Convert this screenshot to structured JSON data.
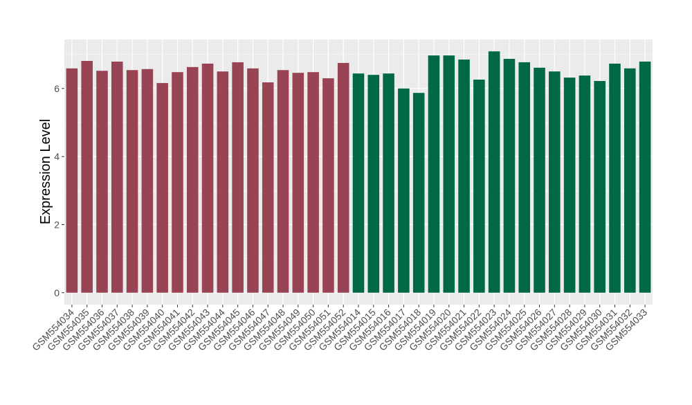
{
  "chart_data": {
    "type": "bar",
    "y_label": "Expression Level",
    "categories": [
      "GSM554034",
      "GSM554035",
      "GSM554036",
      "GSM554037",
      "GSM554038",
      "GSM554039",
      "GSM554040",
      "GSM554041",
      "GSM554042",
      "GSM554043",
      "GSM554044",
      "GSM554045",
      "GSM554046",
      "GSM554047",
      "GSM554048",
      "GSM554049",
      "GSM554050",
      "GSM554051",
      "GSM554052",
      "GSM554014",
      "GSM554015",
      "GSM554016",
      "GSM554017",
      "GSM554018",
      "GSM554019",
      "GSM554020",
      "GSM554021",
      "GSM554022",
      "GSM554023",
      "GSM554024",
      "GSM554025",
      "GSM554026",
      "GSM554027",
      "GSM554028",
      "GSM554029",
      "GSM554030",
      "GSM554031",
      "GSM554032",
      "GSM554033"
    ],
    "values": [
      6.59,
      6.81,
      6.52,
      6.79,
      6.54,
      6.57,
      6.16,
      6.48,
      6.63,
      6.73,
      6.5,
      6.77,
      6.59,
      6.18,
      6.54,
      6.46,
      6.48,
      6.3,
      6.75,
      6.44,
      6.4,
      6.44,
      6.0,
      5.87,
      6.97,
      6.97,
      6.85,
      6.26,
      7.09,
      6.87,
      6.77,
      6.61,
      6.5,
      6.32,
      6.38,
      6.22,
      6.73,
      6.59,
      6.79
    ],
    "colors": [
      "#994455",
      "#994455",
      "#994455",
      "#994455",
      "#994455",
      "#994455",
      "#994455",
      "#994455",
      "#994455",
      "#994455",
      "#994455",
      "#994455",
      "#994455",
      "#994455",
      "#994455",
      "#994455",
      "#994455",
      "#994455",
      "#994455",
      "#006846",
      "#006846",
      "#006846",
      "#006846",
      "#006846",
      "#006846",
      "#006846",
      "#006846",
      "#006846",
      "#006846",
      "#006846",
      "#006846",
      "#006846",
      "#006846",
      "#006846",
      "#006846",
      "#006846",
      "#006846",
      "#006846",
      "#006846"
    ],
    "ylim": [
      -0.35,
      7.44
    ],
    "yticks": [
      0,
      2,
      4,
      6
    ],
    "grid": true
  }
}
